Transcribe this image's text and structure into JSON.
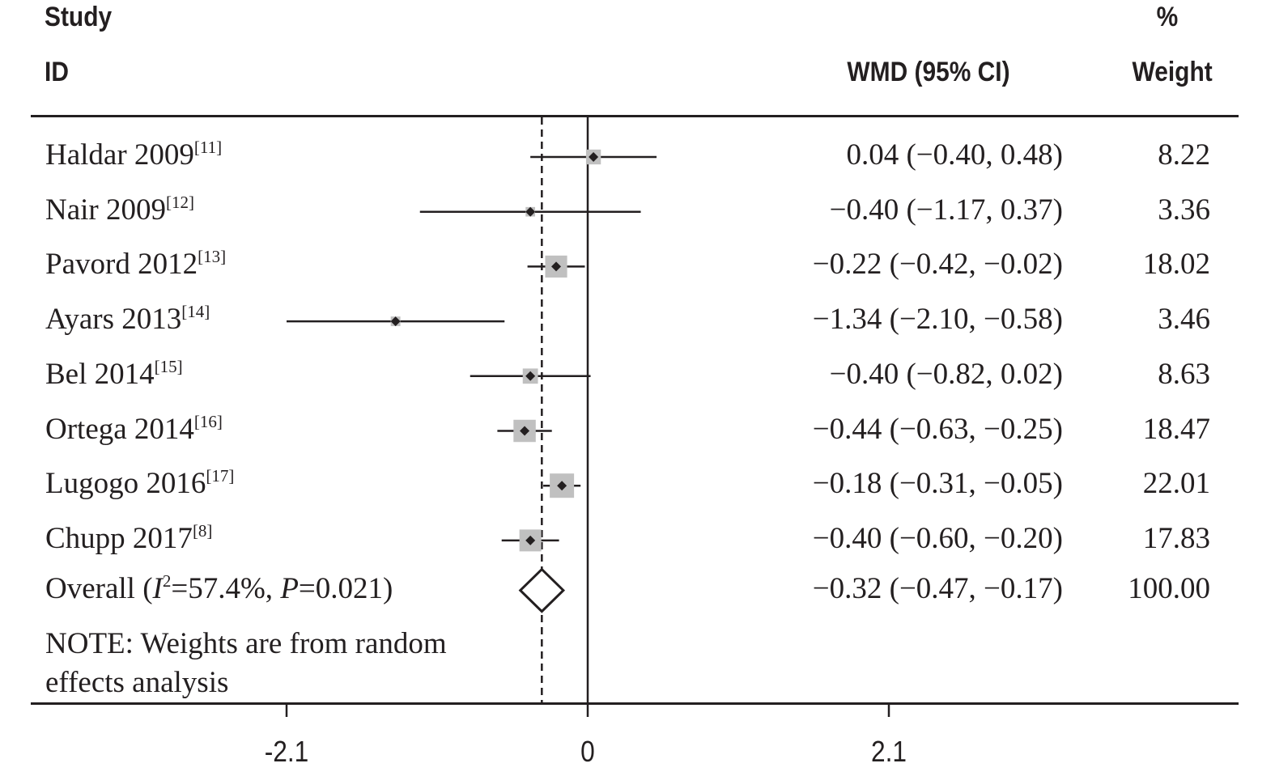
{
  "header": {
    "study_line1": "Study",
    "study_line2": "ID",
    "estimate_label": "WMD (95% CI)",
    "weight_line1": "%",
    "weight_line2": "Weight"
  },
  "chart_data": {
    "type": "forest",
    "effect_measure": "WMD (95% CI)",
    "null_line": 0,
    "pooled_line": -0.32,
    "x_ticks": [
      "-2.1",
      "0",
      "2.1"
    ],
    "x_tick_values": [
      -2.1,
      0,
      2.1
    ],
    "xlim": [
      -3.9,
      4.6
    ],
    "studies": [
      {
        "name": "Haldar 2009",
        "ref": "[11]",
        "estimate": 0.04,
        "lower": -0.4,
        "upper": 0.48,
        "ci_text": "0.04 (−0.40, 0.48)",
        "weight": 8.22,
        "weight_text": "8.22"
      },
      {
        "name": "Nair 2009",
        "ref": "[12]",
        "estimate": -0.4,
        "lower": -1.17,
        "upper": 0.37,
        "ci_text": "−0.40 (−1.17, 0.37)",
        "weight": 3.36,
        "weight_text": "3.36"
      },
      {
        "name": "Pavord 2012",
        "ref": "[13]",
        "estimate": -0.22,
        "lower": -0.42,
        "upper": -0.02,
        "ci_text": "−0.22 (−0.42, −0.02)",
        "weight": 18.02,
        "weight_text": "18.02"
      },
      {
        "name": "Ayars 2013",
        "ref": "[14]",
        "estimate": -1.34,
        "lower": -2.1,
        "upper": -0.58,
        "ci_text": "−1.34 (−2.10, −0.58)",
        "weight": 3.46,
        "weight_text": "3.46"
      },
      {
        "name": "Bel 2014",
        "ref": "[15]",
        "estimate": -0.4,
        "lower": -0.82,
        "upper": 0.02,
        "ci_text": "−0.40 (−0.82, 0.02)",
        "weight": 8.63,
        "weight_text": "8.63"
      },
      {
        "name": "Ortega 2014",
        "ref": "[16]",
        "estimate": -0.44,
        "lower": -0.63,
        "upper": -0.25,
        "ci_text": "−0.44 (−0.63, −0.25)",
        "weight": 18.47,
        "weight_text": "18.47"
      },
      {
        "name": "Lugogo 2016",
        "ref": "[17]",
        "estimate": -0.18,
        "lower": -0.31,
        "upper": -0.05,
        "ci_text": "−0.18 (−0.31, −0.05)",
        "weight": 22.01,
        "weight_text": "22.01"
      },
      {
        "name": "Chupp 2017",
        "ref": "[8]",
        "estimate": -0.4,
        "lower": -0.6,
        "upper": -0.2,
        "ci_text": "−0.40 (−0.60, −0.20)",
        "weight": 17.83,
        "weight_text": "17.83"
      }
    ],
    "overall": {
      "label_prefix": "Overall (",
      "i2_symbol": "I",
      "i2_sup": "2",
      "i2_text": "=57.4%, ",
      "p_symbol": "P",
      "p_text": "=0.021)",
      "estimate": -0.32,
      "lower": -0.47,
      "upper": -0.17,
      "ci_text": "−0.32 (−0.47, −0.17)",
      "weight_text": "100.00"
    },
    "note": "NOTE: Weights are from random effects analysis",
    "colors": {
      "ink": "#231f20",
      "box": "#c0c0c0"
    }
  }
}
